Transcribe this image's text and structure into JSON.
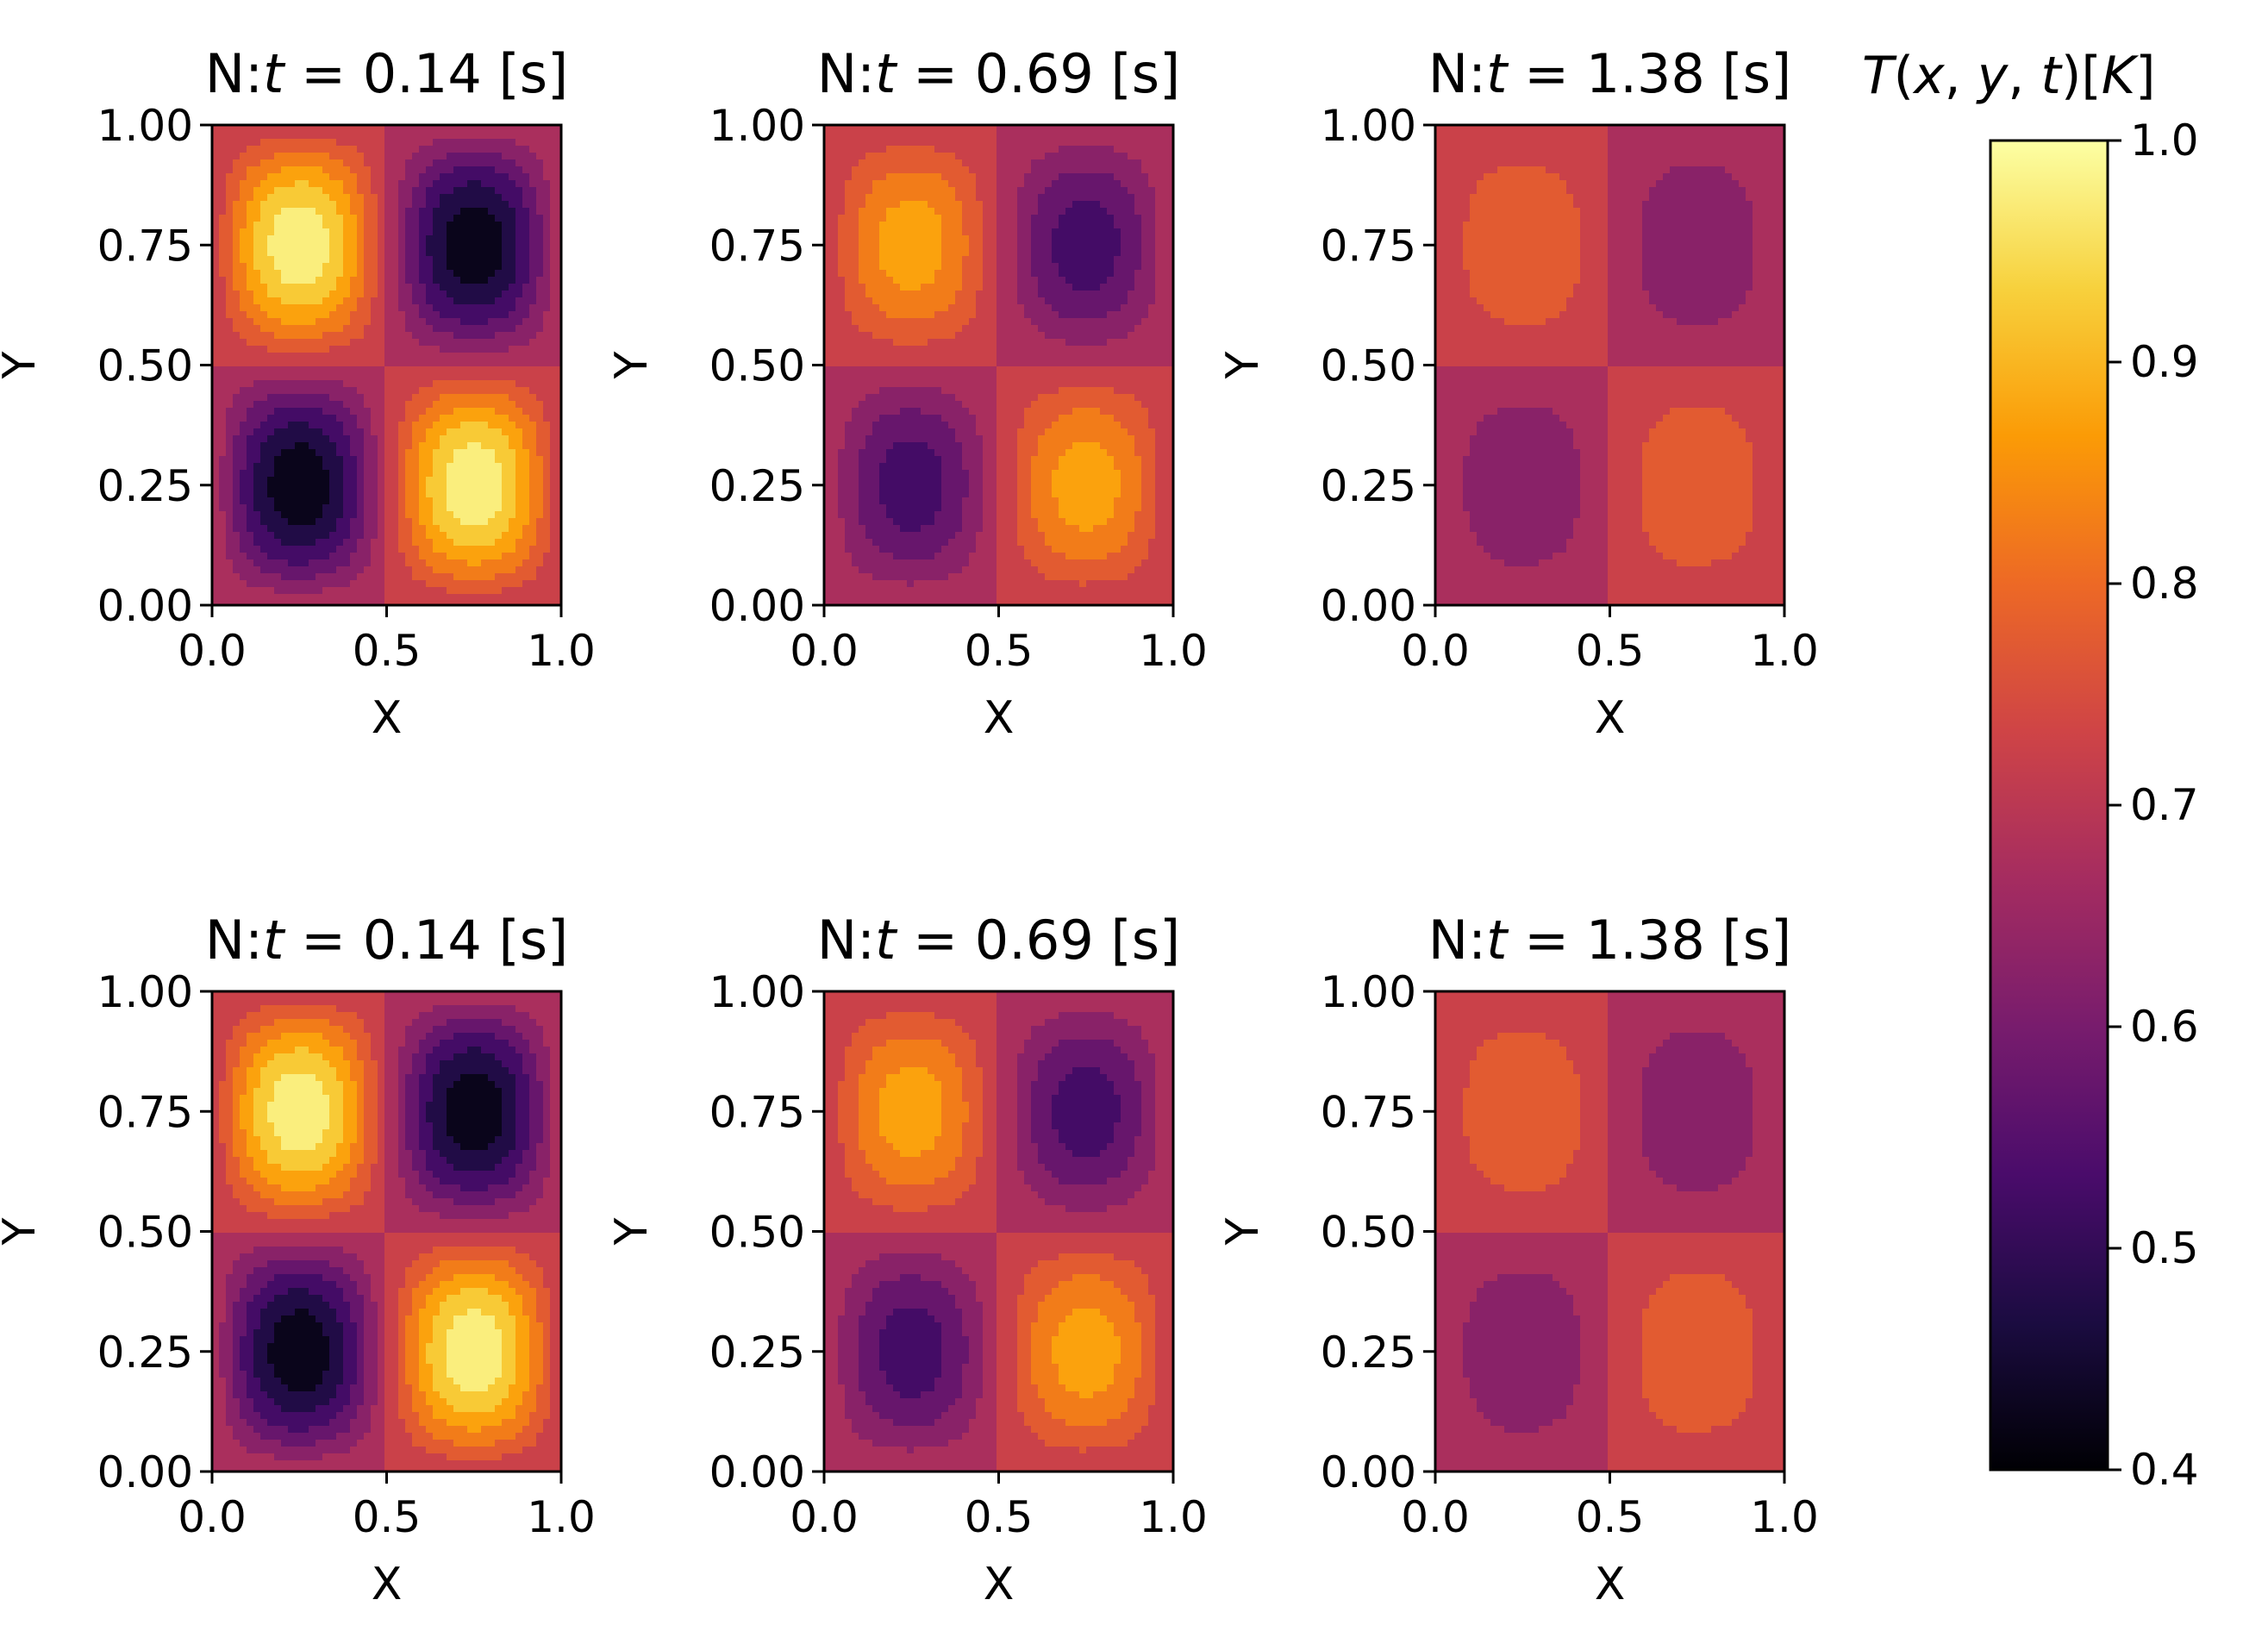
{
  "figure": {
    "colormap": "inferno",
    "colormap_stops": [
      "#000004",
      "#1b0c41",
      "#4a0c6b",
      "#781c6d",
      "#a52c60",
      "#cf4446",
      "#ed6925",
      "#fb9b06",
      "#f7d13d",
      "#fcffa4"
    ]
  },
  "chart_data": [
    {
      "type": "contourf",
      "title_prefix": "N:",
      "title_var": "t",
      "title_eq": " = ",
      "title_value": "0.14",
      "title_unit": " [s]",
      "amplitude": 0.29,
      "xlabel": "X",
      "ylabel": "Y",
      "xlim": [
        0,
        1
      ],
      "ylim": [
        0,
        1
      ],
      "xticks": [
        "0.0",
        "0.5",
        "1.0"
      ],
      "yticks": [
        "0.00",
        "0.25",
        "0.50",
        "0.75",
        "1.00"
      ]
    },
    {
      "type": "contourf",
      "title_prefix": "N:",
      "title_var": "t",
      "title_eq": " = ",
      "title_value": "0.69",
      "title_unit": " [s]",
      "amplitude": 0.18,
      "xlabel": "X",
      "ylabel": "Y",
      "xlim": [
        0,
        1
      ],
      "ylim": [
        0,
        1
      ],
      "xticks": [
        "0.0",
        "0.5",
        "1.0"
      ],
      "yticks": [
        "0.00",
        "0.25",
        "0.50",
        "0.75",
        "1.00"
      ]
    },
    {
      "type": "contourf",
      "title_prefix": "N:",
      "title_var": "t",
      "title_eq": " = ",
      "title_value": "1.38",
      "title_unit": " [s]",
      "amplitude": 0.1,
      "xlabel": "X",
      "ylabel": "Y",
      "xlim": [
        0,
        1
      ],
      "ylim": [
        0,
        1
      ],
      "xticks": [
        "0.0",
        "0.5",
        "1.0"
      ],
      "yticks": [
        "0.00",
        "0.25",
        "0.50",
        "0.75",
        "1.00"
      ]
    },
    {
      "type": "contourf",
      "title_prefix": "N:",
      "title_var": "t",
      "title_eq": " = ",
      "title_value": "0.14",
      "title_unit": " [s]",
      "amplitude": 0.29,
      "xlabel": "X",
      "ylabel": "Y",
      "xlim": [
        0,
        1
      ],
      "ylim": [
        0,
        1
      ],
      "xticks": [
        "0.0",
        "0.5",
        "1.0"
      ],
      "yticks": [
        "0.00",
        "0.25",
        "0.50",
        "0.75",
        "1.00"
      ]
    },
    {
      "type": "contourf",
      "title_prefix": "N:",
      "title_var": "t",
      "title_eq": " = ",
      "title_value": "0.69",
      "title_unit": " [s]",
      "amplitude": 0.18,
      "xlabel": "X",
      "ylabel": "Y",
      "xlim": [
        0,
        1
      ],
      "ylim": [
        0,
        1
      ],
      "xticks": [
        "0.0",
        "0.5",
        "1.0"
      ],
      "yticks": [
        "0.00",
        "0.25",
        "0.50",
        "0.75",
        "1.00"
      ]
    },
    {
      "type": "contourf",
      "title_prefix": "N:",
      "title_var": "t",
      "title_eq": " = ",
      "title_value": "1.38",
      "title_unit": " [s]",
      "amplitude": 0.1,
      "xlabel": "X",
      "ylabel": "Y",
      "xlim": [
        0,
        1
      ],
      "ylim": [
        0,
        1
      ],
      "xticks": [
        "0.0",
        "0.5",
        "1.0"
      ],
      "yticks": [
        "0.00",
        "0.25",
        "0.50",
        "0.75",
        "1.00"
      ]
    }
  ],
  "field": {
    "baseline": 0.7,
    "formula": "T = 0.7 - A * sin(2*pi*x) * sin(2*pi*y)"
  },
  "colorbar": {
    "title": "T(x, y, t)[K]",
    "title_parts": [
      "T",
      "(",
      "x",
      ", ",
      "y",
      ", ",
      "t",
      ")[",
      "K",
      "]"
    ],
    "range": [
      0.4,
      1.0
    ],
    "ticks": [
      "0.4",
      "0.5",
      "0.6",
      "0.7",
      "0.8",
      "0.9",
      "1.0"
    ],
    "tick_values": [
      0.4,
      0.5,
      0.6,
      0.7,
      0.8,
      0.9,
      1.0
    ]
  }
}
